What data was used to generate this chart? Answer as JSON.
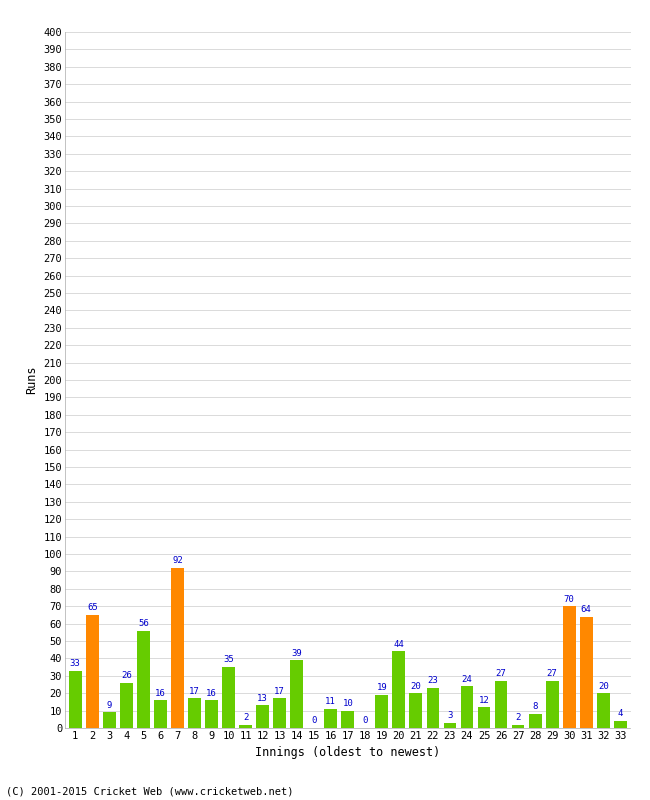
{
  "innings": [
    1,
    2,
    3,
    4,
    5,
    6,
    7,
    8,
    9,
    10,
    11,
    12,
    13,
    14,
    15,
    16,
    17,
    18,
    19,
    20,
    21,
    22,
    23,
    24,
    25,
    26,
    27,
    28,
    29,
    30,
    31,
    32,
    33
  ],
  "values": [
    33,
    65,
    9,
    26,
    56,
    16,
    92,
    17,
    16,
    35,
    2,
    13,
    17,
    39,
    0,
    11,
    10,
    0,
    19,
    44,
    20,
    23,
    3,
    24,
    12,
    27,
    2,
    8,
    27,
    70,
    64,
    20,
    4
  ],
  "colors": [
    "#66cc00",
    "#ff8800",
    "#66cc00",
    "#66cc00",
    "#66cc00",
    "#66cc00",
    "#ff8800",
    "#66cc00",
    "#66cc00",
    "#66cc00",
    "#66cc00",
    "#66cc00",
    "#66cc00",
    "#66cc00",
    "#66cc00",
    "#66cc00",
    "#66cc00",
    "#66cc00",
    "#66cc00",
    "#66cc00",
    "#66cc00",
    "#66cc00",
    "#66cc00",
    "#66cc00",
    "#66cc00",
    "#66cc00",
    "#66cc00",
    "#66cc00",
    "#66cc00",
    "#ff8800",
    "#ff8800",
    "#66cc00",
    "#66cc00"
  ],
  "xlabel": "Innings (oldest to newest)",
  "ylabel": "Runs",
  "ylim": [
    0,
    400
  ],
  "ytick_step": 10,
  "background_color": "#ffffff",
  "grid_color": "#cccccc",
  "label_color": "#0000cc",
  "footer": "(C) 2001-2015 Cricket Web (www.cricketweb.net)"
}
